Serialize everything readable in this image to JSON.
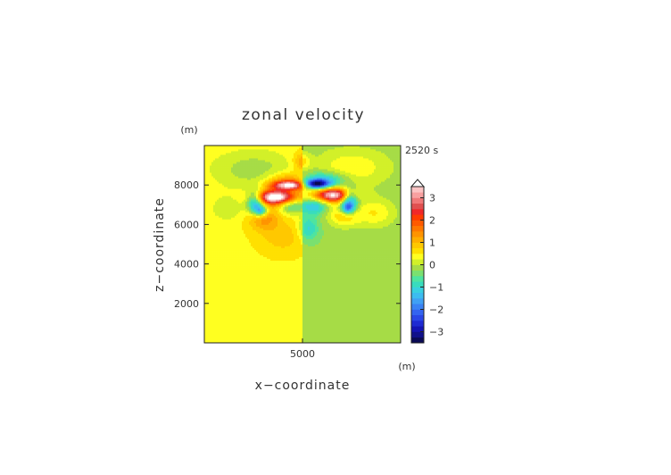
{
  "chart_data": {
    "type": "heatmap",
    "title": "zonal velocity",
    "time_label": "2520 s",
    "xlabel": "x−coordinate",
    "ylabel": "z−coordinate",
    "x_unit": "(m)",
    "y_unit": "(m)",
    "xlim": [
      0,
      10000
    ],
    "ylim": [
      0,
      10000
    ],
    "x_ticks": [
      {
        "value": 5000,
        "label": "5000"
      }
    ],
    "y_ticks": [
      {
        "value": 2000,
        "label": "2000"
      },
      {
        "value": 4000,
        "label": "4000"
      },
      {
        "value": 6000,
        "label": "6000"
      },
      {
        "value": 8000,
        "label": "8000"
      }
    ],
    "colorbar": {
      "range": [
        -3.5,
        3.5
      ],
      "levels": [
        -3.5,
        -3.25,
        -3,
        -2.75,
        -2.5,
        -2.25,
        -2,
        -1.75,
        -1.5,
        -1.25,
        -1,
        -0.75,
        -0.5,
        -0.25,
        0,
        0.25,
        0.5,
        0.75,
        1,
        1.25,
        1.5,
        1.75,
        2,
        2.25,
        2.5,
        2.75,
        3,
        3.25,
        3.5
      ],
      "colors": [
        "#0a0a55",
        "#10108a",
        "#1414b4",
        "#1e2ad2",
        "#2a46e6",
        "#3464f0",
        "#3a82f4",
        "#40a0f4",
        "#3cbcf0",
        "#38d0e0",
        "#38dcbe",
        "#4ee4a0",
        "#7ae070",
        "#a6dc46",
        "#d2f028",
        "#ffff20",
        "#ffe000",
        "#ffc800",
        "#ffae00",
        "#ff9400",
        "#ff7800",
        "#ff5a00",
        "#ff3c00",
        "#f02828",
        "#e05050",
        "#f07878",
        "#f8a0a0",
        "#fcc4c4"
      ],
      "ticks": [
        {
          "value": 3,
          "label": "3"
        },
        {
          "value": 2,
          "label": "2"
        },
        {
          "value": 1,
          "label": "1"
        },
        {
          "value": 0,
          "label": "0"
        },
        {
          "value": -1,
          "label": "−1"
        },
        {
          "value": -2,
          "label": "−2"
        },
        {
          "value": -3,
          "label": "−3"
        }
      ]
    },
    "field": {
      "background_left": 0.45,
      "background_right": -0.2,
      "features": [
        {
          "x": 3600,
          "z": 7400,
          "sx": 700,
          "sz": 250,
          "amp": 3.7
        },
        {
          "x": 6600,
          "z": 7500,
          "sx": 700,
          "sz": 250,
          "amp": 3.7
        },
        {
          "x": 2600,
          "z": 7150,
          "sx": 300,
          "sz": 400,
          "amp": -2.2
        },
        {
          "x": 7400,
          "z": 7300,
          "sx": 300,
          "sz": 350,
          "amp": -2.2
        },
        {
          "x": 3000,
          "z": 6400,
          "sx": 550,
          "sz": 450,
          "amp": 1.0
        },
        {
          "x": 7100,
          "z": 6500,
          "sx": 550,
          "sz": 400,
          "amp": 1.0
        },
        {
          "x": 2900,
          "z": 6700,
          "sx": 250,
          "sz": 200,
          "amp": -1.8
        },
        {
          "x": 7300,
          "z": 6800,
          "sx": 250,
          "sz": 200,
          "amp": -1.8
        },
        {
          "x": 4400,
          "z": 8000,
          "sx": 700,
          "sz": 160,
          "amp": 2.9
        },
        {
          "x": 4400,
          "z": 8250,
          "sx": 800,
          "sz": 280,
          "amp": 1.0
        },
        {
          "x": 5650,
          "z": 8050,
          "sx": 500,
          "sz": 160,
          "amp": -3.4
        },
        {
          "x": 6000,
          "z": 8300,
          "sx": 800,
          "sz": 250,
          "amp": -1.3
        },
        {
          "x": 4450,
          "z": 6950,
          "sx": 450,
          "sz": 280,
          "amp": -1.1
        },
        {
          "x": 5650,
          "z": 6950,
          "sx": 400,
          "sz": 280,
          "amp": -1.1
        },
        {
          "x": 5300,
          "z": 5800,
          "sx": 350,
          "sz": 450,
          "amp": -0.9
        },
        {
          "x": 4000,
          "z": 5400,
          "sx": 800,
          "sz": 600,
          "amp": 0.45
        },
        {
          "x": 2500,
          "z": 8800,
          "sx": 1500,
          "sz": 700,
          "amp": -0.6
        },
        {
          "x": 7500,
          "z": 8900,
          "sx": 1400,
          "sz": 700,
          "amp": 0.65
        },
        {
          "x": 5000,
          "z": 9200,
          "sx": 300,
          "sz": 300,
          "amp": 0.8
        },
        {
          "x": 1200,
          "z": 6800,
          "sx": 700,
          "sz": 500,
          "amp": -0.35
        },
        {
          "x": 8700,
          "z": 6600,
          "sx": 700,
          "sz": 500,
          "amp": 0.7
        }
      ]
    }
  }
}
